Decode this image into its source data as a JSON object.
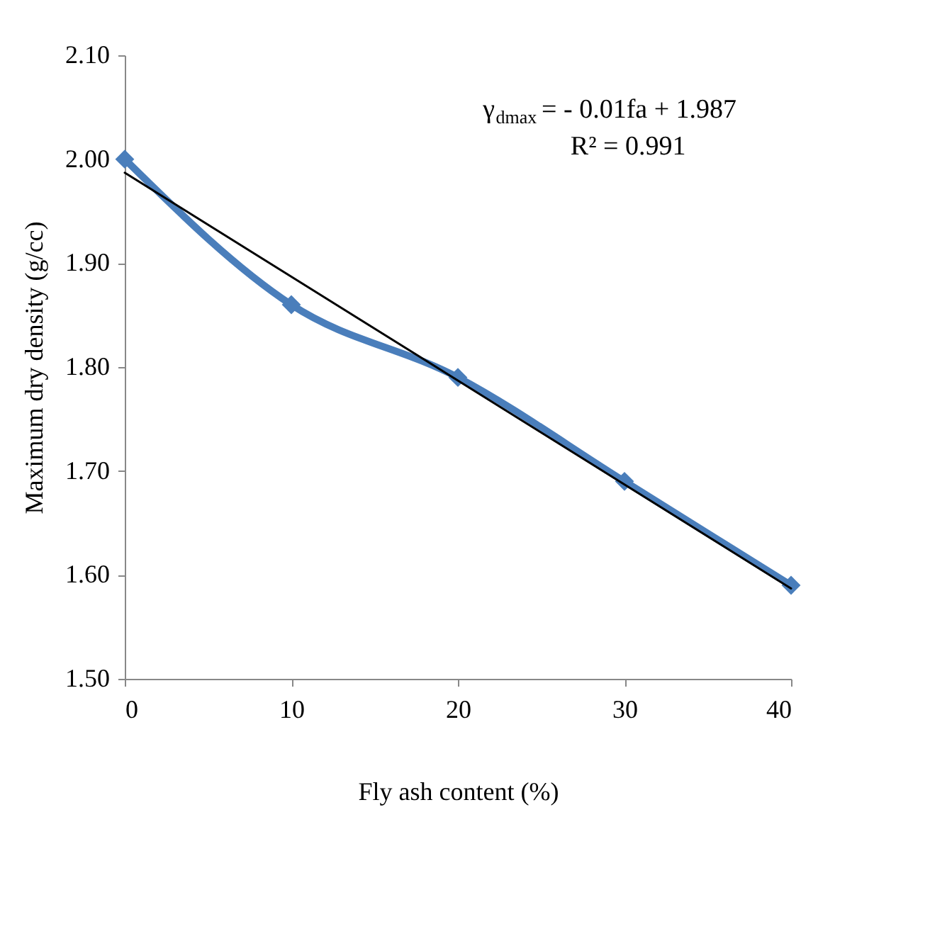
{
  "chart_data": {
    "type": "line",
    "xlabel": "Fly ash content (%)",
    "ylabel": "Maximum dry density  (g/cc)",
    "x": [
      0,
      10,
      20,
      30,
      40
    ],
    "series": [
      {
        "color": "#4a7ebb",
        "values": [
          2.0,
          1.86,
          1.79,
          1.69,
          1.59
        ],
        "marker": "diamond"
      },
      {
        "type": "line",
        "color": "#000000",
        "x": [
          0,
          40
        ],
        "values": [
          1.987,
          1.587
        ],
        "marker": "none"
      }
    ],
    "annotations": [
      "γ$_{dmax}$ = - 0.01fa + 1.987",
      "R² = 0.991"
    ],
    "xlim": [
      0,
      40
    ],
    "xticks": [
      0,
      10,
      20,
      30,
      40
    ],
    "ylim": [
      1.5,
      2.1
    ],
    "yticks": [
      {
        "value": 1.5,
        "label": "1.50"
      },
      {
        "value": 1.6,
        "label": "1.60"
      },
      {
        "value": 1.7,
        "label": "1.70"
      },
      {
        "value": 1.8,
        "label": "1.80"
      },
      {
        "value": 1.9,
        "label": "1.90"
      },
      {
        "value": 2.0,
        "label": "2.00"
      },
      {
        "value": 2.1,
        "label": "2.10"
      }
    ],
    "grid": false
  }
}
